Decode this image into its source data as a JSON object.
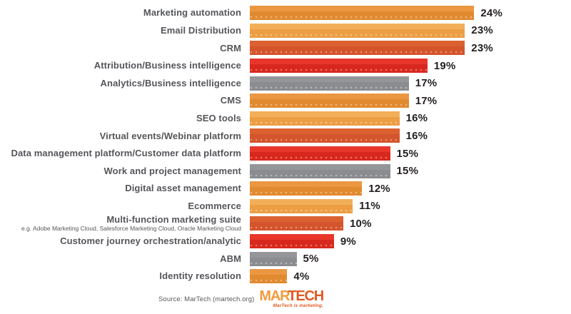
{
  "chart_data": {
    "type": "bar",
    "orientation": "horizontal",
    "title": "",
    "xlabel": "",
    "ylabel": "",
    "xlim": [
      0,
      25
    ],
    "grid": false,
    "value_suffix": "%",
    "categories": [
      "Marketing automation",
      "Email Distribution",
      "CRM",
      "Attribution/Business intelligence",
      "Analytics/Business intelligence",
      "CMS",
      "SEO tools",
      "Virtual events/Webinar platform",
      "Data management platform/Customer data platform",
      "Work and project management",
      "Digital asset management",
      "Ecommerce",
      "Multi-function marketing suite",
      "Customer journey orchestration/analytic",
      "ABM",
      "Identity resolution"
    ],
    "subtitles": {
      "12": "e.g. Adobe Marketing Cloud, Salesforce Marketing Cloud, Oracle Marketing Cloud"
    },
    "values": [
      24,
      23,
      23,
      19,
      17,
      17,
      16,
      16,
      15,
      15,
      12,
      11,
      10,
      9,
      5,
      4
    ],
    "color_keys": [
      "orange",
      "light_orange",
      "dark_orange",
      "red",
      "gray",
      "orange",
      "light_orange",
      "dark_orange",
      "red",
      "gray",
      "orange",
      "light_orange",
      "dark_orange",
      "red",
      "gray",
      "orange"
    ]
  },
  "palette": {
    "orange": {
      "top": "#EB9742",
      "bottom": "#E18A30"
    },
    "light_orange": {
      "top": "#F2AF5A",
      "bottom": "#EC9E44"
    },
    "dark_orange": {
      "top": "#DB6130",
      "bottom": "#D4542B"
    },
    "red": {
      "top": "#E9362B",
      "bottom": "#D8281D"
    },
    "gray": {
      "top": "#949699",
      "bottom": "#8A8C8F"
    }
  },
  "text_colors": {
    "label": "#55565a",
    "percent": "#231f20"
  },
  "footer": {
    "source": "Source: MarTech (martech.org)",
    "logo": {
      "part1": "MAR",
      "part2": "TECH",
      "tagline": "MarTech is marketing."
    }
  }
}
